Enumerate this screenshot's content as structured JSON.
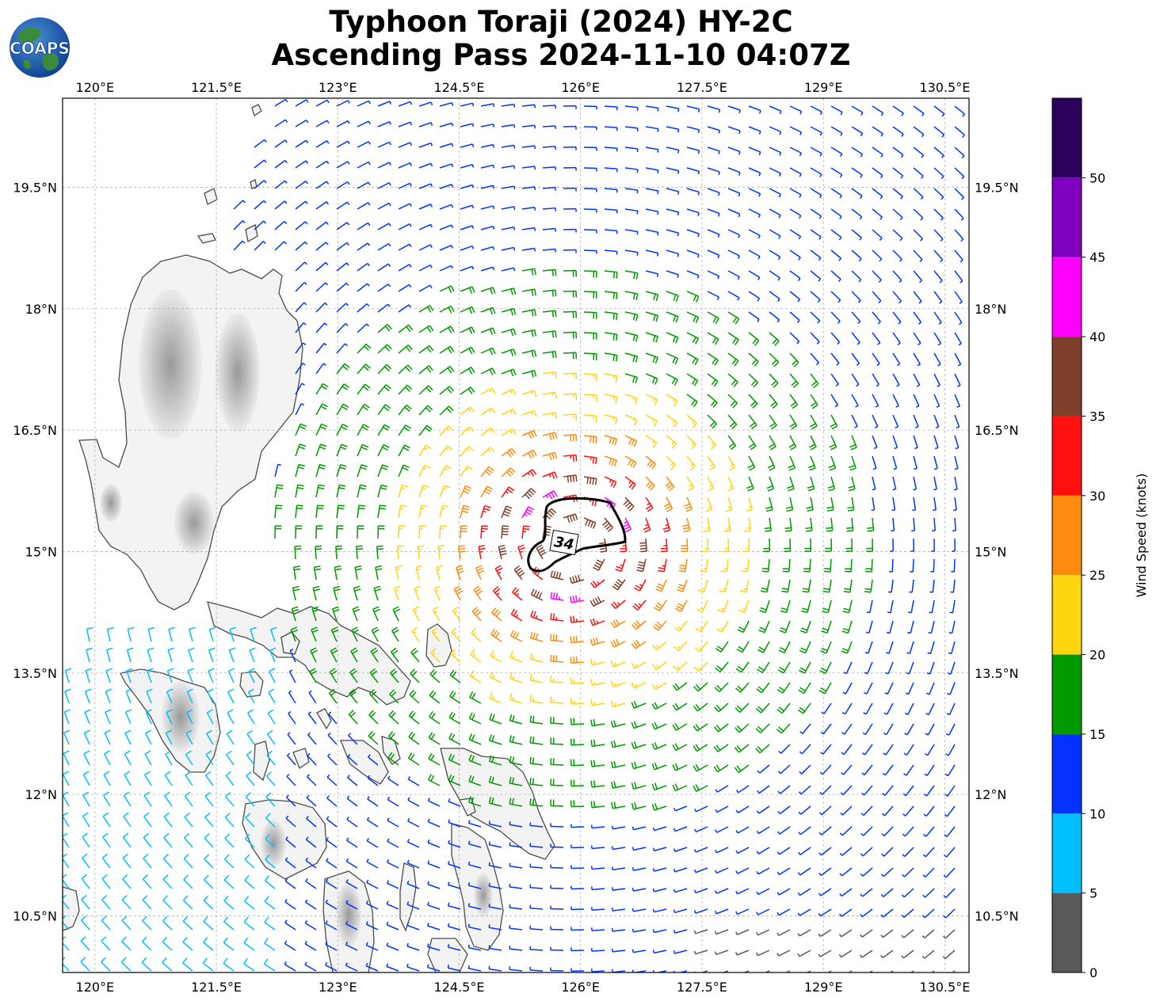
{
  "title_line1": "Typhoon Toraji (2024) HY-2C",
  "title_line2": "Ascending Pass 2024-11-10 04:07Z",
  "logo_text": "COAPS",
  "map": {
    "lon_ticks": [
      "120°E",
      "121.5°E",
      "123°E",
      "124.5°E",
      "126°E",
      "127.5°E",
      "129°E",
      "130.5°E"
    ],
    "lon_values": [
      120,
      121.5,
      123,
      124.5,
      126,
      127.5,
      129,
      130.5
    ],
    "lat_ticks": [
      "19.5°N",
      "18°N",
      "16.5°N",
      "15°N",
      "13.5°N",
      "12°N",
      "10.5°N"
    ],
    "lat_values": [
      19.5,
      18,
      16.5,
      15,
      13.5,
      12,
      10.5
    ],
    "lon_range": [
      119.6,
      130.8
    ],
    "lat_range": [
      9.8,
      20.6
    ],
    "gridlines": true,
    "storm_center": {
      "lon": 125.9,
      "lat": 15.1
    },
    "wind_radius_label": "34",
    "wind_radius_contour_color": "#000000"
  },
  "colorbar": {
    "label": "Wind Speed (knots)",
    "tick_labels": [
      "0",
      "5",
      "10",
      "15",
      "20",
      "25",
      "30",
      "35",
      "40",
      "45",
      "50"
    ],
    "bins": [
      {
        "min": 0,
        "max": 5,
        "color": "#595959"
      },
      {
        "min": 5,
        "max": 10,
        "color": "#00bfff"
      },
      {
        "min": 10,
        "max": 15,
        "color": "#0033ff"
      },
      {
        "min": 15,
        "max": 20,
        "color": "#009900"
      },
      {
        "min": 20,
        "max": 25,
        "color": "#ffd50f"
      },
      {
        "min": 25,
        "max": 30,
        "color": "#ff8c0f"
      },
      {
        "min": 30,
        "max": 35,
        "color": "#ff0f0f"
      },
      {
        "min": 35,
        "max": 40,
        "color": "#803f2b"
      },
      {
        "min": 40,
        "max": 45,
        "color": "#ff00ff"
      },
      {
        "min": 45,
        "max": 50,
        "color": "#8000bf"
      },
      {
        "min": 50,
        "max": 55,
        "color": "#2b005c"
      }
    ]
  }
}
